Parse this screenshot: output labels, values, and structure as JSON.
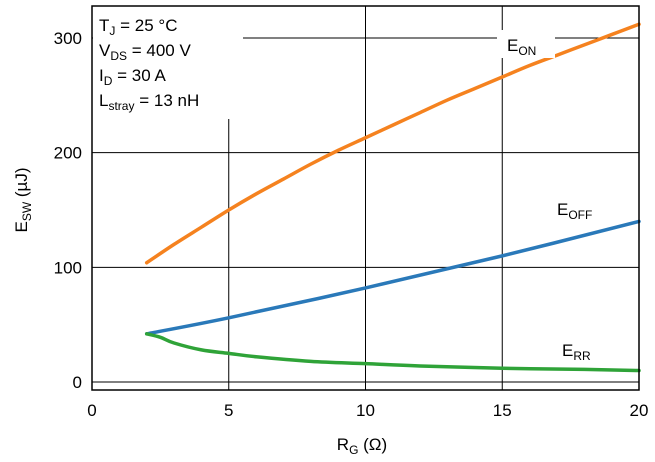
{
  "chart_data": {
    "type": "line",
    "title": "",
    "xlabel": {
      "main": "R",
      "sub": "G",
      "unit": " (Ω)"
    },
    "ylabel": {
      "main": "E",
      "sub": "SW",
      "unit": " (µJ)"
    },
    "xlim": [
      0,
      20
    ],
    "ylim": [
      0,
      325
    ],
    "xticks": [
      0,
      5,
      10,
      15,
      20
    ],
    "yticks": [
      0,
      100,
      200,
      300
    ],
    "grid": true,
    "conditions": [
      {
        "main": "T",
        "sub": "J",
        "rest": " = 25 °C"
      },
      {
        "main": "V",
        "sub": "DS",
        "rest": " = 400 V"
      },
      {
        "main": "I",
        "sub": "D",
        "rest": " = 30 A"
      },
      {
        "main": "L",
        "sub": "stray",
        "rest": " = 13 nH"
      }
    ],
    "series": [
      {
        "name": "EON",
        "label_main": "E",
        "label_sub": "ON",
        "color": "#f5821f",
        "x": [
          2,
          3,
          4,
          5,
          6,
          7,
          8,
          9,
          10,
          11,
          12,
          13,
          14,
          15,
          16,
          17,
          18,
          19,
          20
        ],
        "y": [
          104,
          120,
          135,
          150,
          164,
          177,
          190,
          202,
          213,
          224,
          235,
          246,
          256,
          266,
          276,
          285,
          294,
          303,
          312
        ]
      },
      {
        "name": "EOFF",
        "label_main": "E",
        "label_sub": "OFF",
        "color": "#2a79b9",
        "x": [
          2,
          5,
          10,
          15,
          20
        ],
        "y": [
          42,
          56,
          82,
          110,
          140
        ]
      },
      {
        "name": "ERR",
        "label_main": "E",
        "label_sub": "RR",
        "color": "#2fa338",
        "x": [
          2,
          2.5,
          3,
          4,
          5,
          6,
          8,
          10,
          12,
          15,
          18,
          20
        ],
        "y": [
          42,
          39,
          34,
          28,
          25,
          22,
          18,
          16,
          14,
          12,
          11,
          10
        ]
      }
    ]
  }
}
